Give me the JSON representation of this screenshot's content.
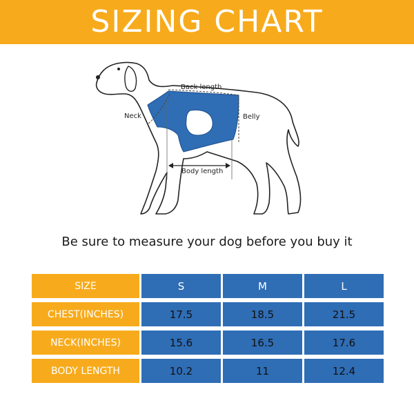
{
  "banner": {
    "title": "SIZING CHART",
    "color": "#f7ab1c"
  },
  "diagram": {
    "labels": {
      "back_length": "Back length",
      "neck": "Neck",
      "belly": "Belly",
      "body_length": "Body length"
    },
    "vest_color": "#2f6db5"
  },
  "caption": "Be sure to measure your dog before you buy it",
  "table": {
    "colors": {
      "label_bg": "#f7ab1c",
      "value_bg": "#2f6db5"
    },
    "header": [
      "SIZE",
      "S",
      "M",
      "L"
    ],
    "rows": [
      [
        "CHEST(INCHES)",
        "17.5",
        "18.5",
        "21.5"
      ],
      [
        "NECK(INCHES)",
        "15.6",
        "16.5",
        "17.6"
      ],
      [
        "BODY LENGTH",
        "10.2",
        "11",
        "12.4"
      ]
    ]
  }
}
